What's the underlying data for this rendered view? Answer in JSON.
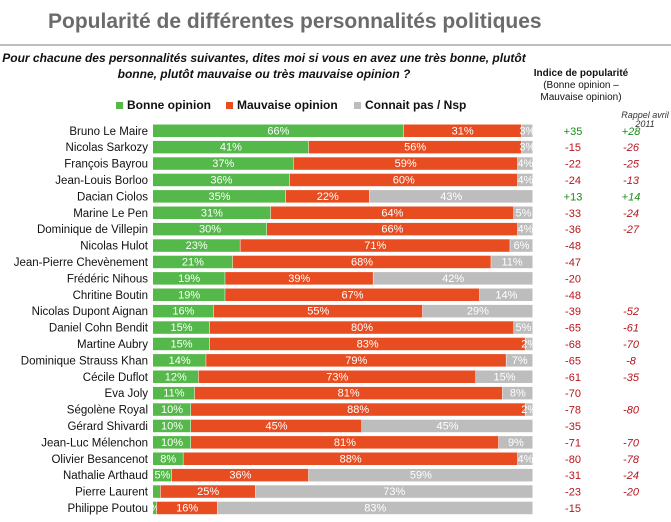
{
  "title": "Popularité de différentes personnalités politiques",
  "question": "Pour chacune des personnalités suivantes, dites moi si vous en avez une très bonne, plutôt bonne, plutôt mauvaise ou très mauvaise opinion ?",
  "index_header": {
    "title": "Indice de popularité",
    "subtitle": "(Bonne opinion – Mauvaise opinion)"
  },
  "rappel_header": "Rappel avril 2011",
  "colors": {
    "bonne": "#55b84a",
    "mauvaise": "#e84d22",
    "nsp": "#bdbdbd",
    "positive": "#1a8c1a",
    "negative": "#b8141e"
  },
  "chart_data": {
    "type": "bar",
    "stacked": true,
    "orientation": "horizontal",
    "title": "Popularité de différentes personnalités politiques",
    "legend_position": "top",
    "categories": [
      "Bruno Le Maire",
      "Nicolas Sarkozy",
      "François Bayrou",
      "Jean-Louis Borloo",
      "Dacian Ciolos",
      "Marine Le Pen",
      "Dominique de Villepin",
      "Nicolas Hulot",
      "Jean-Pierre Chevènement",
      "Frédéric Nihous",
      "Chritine Boutin",
      "Nicolas Dupont Aignan",
      "Daniel Cohn Bendit",
      "Martine Aubry",
      "Dominique Strauss Khan",
      "Cécile Duflot",
      "Eva Joly",
      "Ségolène Royal",
      "Gérard Shivardi",
      "Jean-Luc Mélenchon",
      "Olivier Besancenot",
      "Nathalie Arthaud",
      "Pierre Laurent",
      "Philippe Poutou"
    ],
    "series": [
      {
        "name": "Bonne opinion",
        "color_key": "bonne",
        "values": [
          66,
          41,
          37,
          36,
          35,
          31,
          30,
          23,
          21,
          19,
          19,
          16,
          15,
          15,
          14,
          12,
          11,
          10,
          10,
          10,
          8,
          5,
          2,
          1
        ]
      },
      {
        "name": "Mauvaise opinion",
        "color_key": "mauvaise",
        "values": [
          31,
          56,
          59,
          60,
          22,
          64,
          66,
          71,
          68,
          39,
          67,
          55,
          80,
          83,
          79,
          73,
          81,
          88,
          45,
          81,
          88,
          36,
          25,
          16
        ]
      },
      {
        "name": "Connait pas / Nsp",
        "color_key": "nsp",
        "values": [
          3,
          3,
          4,
          4,
          43,
          5,
          4,
          6,
          11,
          42,
          14,
          29,
          5,
          2,
          7,
          15,
          8,
          2,
          45,
          9,
          4,
          59,
          73,
          83
        ]
      }
    ],
    "value_labels": {
      "Bonne opinion": [
        "66%",
        "41%",
        "37%",
        "36%",
        "35%",
        "31%",
        "30%",
        "23%",
        "21%",
        "19%",
        "19%",
        "16%",
        "15%",
        "15%",
        "14%",
        "12%",
        "11%",
        "10%",
        "10%",
        "10%",
        "8%",
        "5%",
        "",
        "%"
      ],
      "Mauvaise opinion": [
        "31%",
        "56%",
        "59%",
        "60%",
        "22%",
        "64%",
        "66%",
        "71%",
        "68%",
        "39%",
        "67%",
        "55%",
        "80%",
        "83%",
        "79%",
        "73%",
        "81%",
        "88%",
        "45%",
        "81%",
        "88%",
        "36%",
        "25%",
        "16%"
      ],
      "Connait pas / Nsp": [
        "3%",
        "3%",
        "4%",
        "4%",
        "43%",
        "5%",
        "4%",
        "6%",
        "11%",
        "42%",
        "14%",
        "29%",
        "5%",
        "2%",
        "7%",
        "15%",
        "8%",
        "2%",
        "45%",
        "9%",
        "4%",
        "59%",
        "73%",
        "83%"
      ]
    },
    "indice": [
      "+35",
      "-15",
      "-22",
      "-24",
      "+13",
      "-33",
      "-36",
      "-48",
      "-47",
      "-20",
      "-48",
      "-39",
      "-65",
      "-68",
      "-65",
      "-61",
      "-70",
      "-78",
      "-35",
      "-71",
      "-80",
      "-31",
      "-23",
      "-15"
    ],
    "rappel_avril_2011": [
      "+28",
      "-26",
      "-25",
      "-13",
      "+14",
      "-24",
      "-27",
      "",
      "",
      "",
      "",
      "-52",
      "-61",
      "-70",
      "-8",
      "-35",
      "",
      "-80",
      "",
      "-70",
      "-78",
      "-24",
      "-20",
      ""
    ],
    "xlim": [
      0,
      100
    ]
  }
}
